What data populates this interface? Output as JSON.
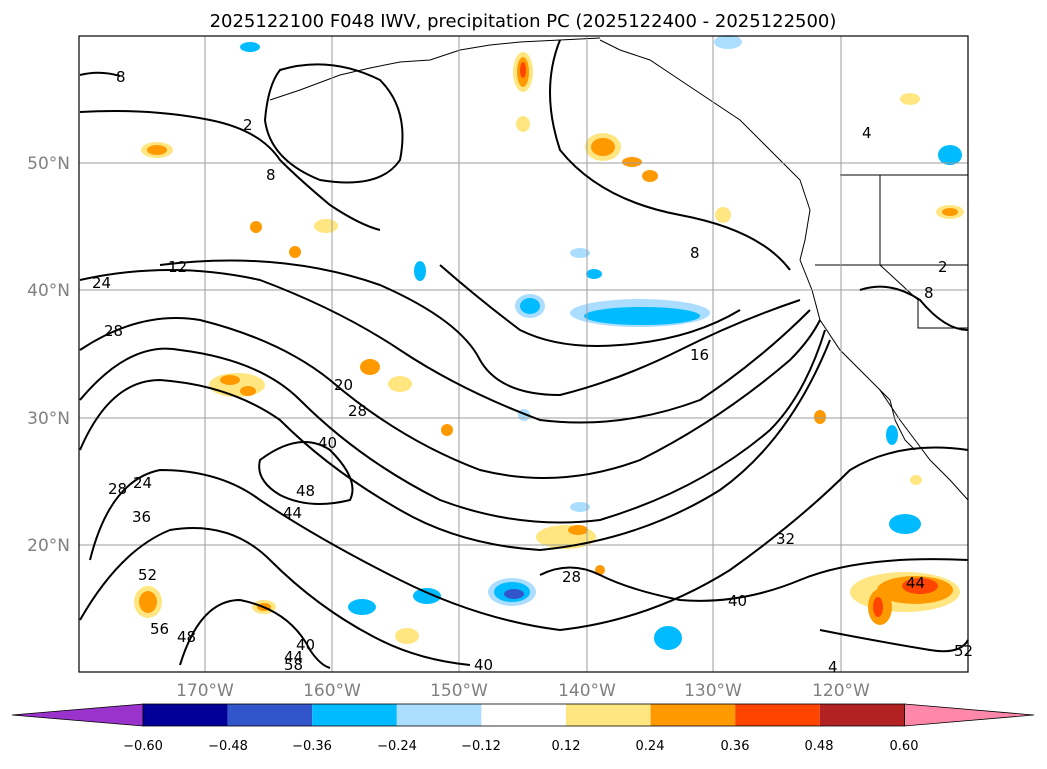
{
  "title": "2025122100 F048 IWV, precipitation PC (2025122400 - 2025122500)",
  "map": {
    "lat_labels": [
      "50°N",
      "40°N",
      "30°N",
      "20°N"
    ],
    "lon_labels": [
      "170°W",
      "160°W",
      "150°W",
      "140°W",
      "130°W",
      "120°W"
    ],
    "contour_labels": [
      "8",
      "2",
      "8",
      "12",
      "24",
      "28",
      "20",
      "28",
      "40",
      "48",
      "44",
      "28",
      "24",
      "36",
      "52",
      "56",
      "48",
      "40",
      "44",
      "58",
      "40",
      "28",
      "16",
      "8",
      "32",
      "40",
      "44",
      "8",
      "2",
      "4",
      "52",
      "4"
    ],
    "land_color": "#ffffff",
    "contour_color": "#000000",
    "grid_color": "#9e9e9e"
  },
  "colorbar": {
    "ticks": [
      "−0.60",
      "−0.48",
      "−0.36",
      "−0.24",
      "−0.12",
      "0.12",
      "0.24",
      "0.36",
      "0.48",
      "0.60"
    ],
    "colors": [
      "#9933cc",
      "#000099",
      "#3355cc",
      "#00bbff",
      "#aaddff",
      "#ffffff",
      "#ffe680",
      "#ff9900",
      "#ff4400",
      "#b22222",
      "#ff88aa"
    ]
  }
}
